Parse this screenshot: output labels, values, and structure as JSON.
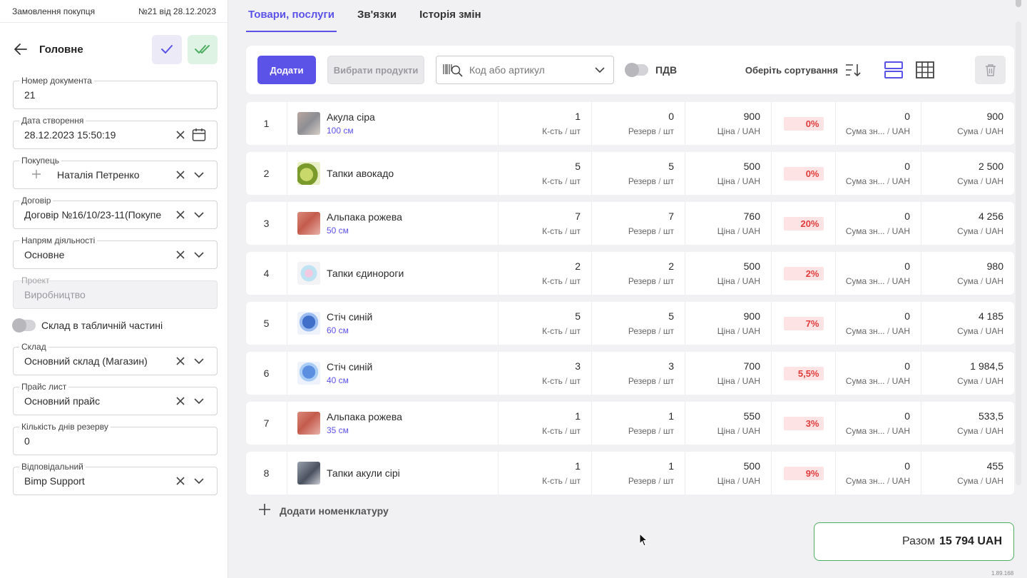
{
  "sidebar": {
    "doc_type": "Замовлення покупця",
    "doc_number": "№21 від 28.12.2023",
    "section_title": "Головне",
    "fields": {
      "doc_no": {
        "label": "Номер документа",
        "value": "21"
      },
      "created": {
        "label": "Дата створення",
        "value": "28.12.2023 15:50:19"
      },
      "buyer": {
        "label": "Покупець",
        "value": "Наталія Петренко"
      },
      "contract": {
        "label": "Договір",
        "value": "Договір №16/10/23-11(Покупе"
      },
      "activity": {
        "label": "Напрям діяльності",
        "value": "Основне"
      },
      "project": {
        "label": "Проект",
        "value": "Виробництво"
      },
      "warehouse": {
        "label": "Склад",
        "value": "Основний склад (Магазин)"
      },
      "pricelist": {
        "label": "Прайс лист",
        "value": "Основний прайс"
      },
      "reserve_days": {
        "label": "Кількість днів резерву",
        "value": "0"
      },
      "responsible": {
        "label": "Відповідальний",
        "value": "Bimp Support"
      }
    },
    "warehouse_toggle_label": "Склад в табличній частині"
  },
  "tabs": [
    "Товари, послуги",
    "Зв'язки",
    "Історія змін"
  ],
  "toolbar": {
    "add_label": "Додати",
    "choose_label": "Вибрати продукти",
    "search_placeholder": "Код або артикул",
    "vat_label": "ПДВ",
    "sort_label": "Оберіть сортування"
  },
  "units": {
    "qty": "К-сть",
    "reserve": "Резерв",
    "price": "Ціна",
    "disc_sum": "Сума зн...",
    "sum": "Сума",
    "pcs": "шт",
    "cur": "UAH"
  },
  "rows": [
    {
      "n": "1",
      "name": "Акула сіра",
      "size": "100 см",
      "qty": "1",
      "reserve": "0",
      "price": "900",
      "disc": "0%",
      "disc_sum": "0",
      "sum": "900"
    },
    {
      "n": "2",
      "name": "Тапки авокадо",
      "size": "",
      "qty": "5",
      "reserve": "5",
      "price": "500",
      "disc": "0%",
      "disc_sum": "0",
      "sum": "2 500"
    },
    {
      "n": "3",
      "name": "Альпака рожева",
      "size": "50 см",
      "qty": "7",
      "reserve": "7",
      "price": "760",
      "disc": "20%",
      "disc_sum": "0",
      "sum": "4 256"
    },
    {
      "n": "4",
      "name": "Тапки єдинороги",
      "size": "",
      "qty": "2",
      "reserve": "2",
      "price": "500",
      "disc": "2%",
      "disc_sum": "0",
      "sum": "980"
    },
    {
      "n": "5",
      "name": "Стіч синій",
      "size": "60 см",
      "qty": "5",
      "reserve": "5",
      "price": "900",
      "disc": "7%",
      "disc_sum": "0",
      "sum": "4 185"
    },
    {
      "n": "6",
      "name": "Стіч синій",
      "size": "40 см",
      "qty": "3",
      "reserve": "3",
      "price": "700",
      "disc": "5,5%",
      "disc_sum": "0",
      "sum": "1 984,5"
    },
    {
      "n": "7",
      "name": "Альпака рожева",
      "size": "35 см",
      "qty": "1",
      "reserve": "1",
      "price": "550",
      "disc": "3%",
      "disc_sum": "0",
      "sum": "533,5"
    },
    {
      "n": "8",
      "name": "Тапки акули сірі",
      "size": "",
      "qty": "1",
      "reserve": "1",
      "price": "500",
      "disc": "9%",
      "disc_sum": "0",
      "sum": "455"
    }
  ],
  "add_nomenclature_label": "Додати номенклатуру",
  "total": {
    "label": "Разом",
    "value": "15 794 UAH"
  },
  "version": "1.89.168",
  "colors": {
    "accent": "#5b52e8",
    "success": "#4fae62",
    "discount": "#e03c3c"
  }
}
